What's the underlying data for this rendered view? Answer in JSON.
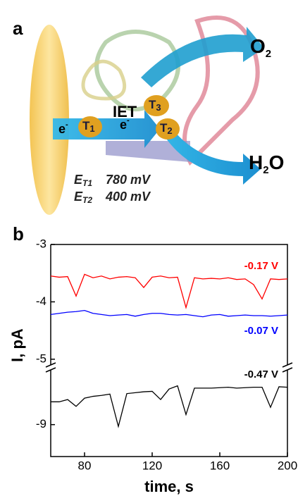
{
  "panel_a": {
    "label": "a",
    "iet": "IET",
    "electron_1": {
      "base": "e",
      "sup": "-"
    },
    "electron_2": {
      "base": "e",
      "sup": "-"
    },
    "t1": {
      "base": "T",
      "sub": "1"
    },
    "t2": {
      "base": "T",
      "sub": "2"
    },
    "t3": {
      "base": "T",
      "sub": "3"
    },
    "o2": {
      "base": "O",
      "sub": "2"
    },
    "h2o": {
      "base": "H",
      "sub": "2",
      "rest": "O"
    },
    "e_t1": {
      "base": "E",
      "sub": "T1",
      "value": "780 mV"
    },
    "e_t2": {
      "base": "E",
      "sub": "T2",
      "value": "400 mV"
    }
  },
  "chart_data": {
    "type": "line",
    "panel_label": "b",
    "x_label": "time, s",
    "y_label": "I, pA",
    "x": [
      60,
      65,
      70,
      75,
      80,
      85,
      90,
      95,
      100,
      105,
      110,
      115,
      120,
      125,
      130,
      135,
      140,
      145,
      150,
      155,
      160,
      165,
      170,
      175,
      180,
      185,
      190,
      195,
      200
    ],
    "xlim": [
      60,
      200
    ],
    "xticks": [
      80,
      120,
      160,
      200
    ],
    "ylim": [
      -5.1,
      -3
    ],
    "yticks": [
      -3,
      -4,
      -5
    ],
    "y2lim": [
      -9.7,
      -7.8
    ],
    "y2ticks": [
      -9
    ],
    "series": [
      {
        "name": "-0.17 V",
        "color": "#ff0000",
        "values": [
          -3.55,
          -3.57,
          -3.56,
          -3.9,
          -3.52,
          -3.58,
          -3.55,
          -3.6,
          -3.57,
          -3.56,
          -3.58,
          -3.75,
          -3.57,
          -3.55,
          -3.58,
          -3.57,
          -4.1,
          -3.58,
          -3.6,
          -3.59,
          -3.6,
          -3.58,
          -3.61,
          -3.6,
          -3.7,
          -3.95,
          -3.6,
          -3.61,
          -3.6
        ]
      },
      {
        "name": "-0.07 V",
        "color": "#0000ff",
        "values": [
          -4.22,
          -4.2,
          -4.18,
          -4.17,
          -4.15,
          -4.2,
          -4.22,
          -4.24,
          -4.23,
          -4.22,
          -4.25,
          -4.22,
          -4.2,
          -4.2,
          -4.22,
          -4.23,
          -4.22,
          -4.24,
          -4.26,
          -4.23,
          -4.22,
          -4.25,
          -4.24,
          -4.23,
          -4.24,
          -4.24,
          -4.25,
          -4.24,
          -4.23
        ]
      },
      {
        "name": "-0.47 V",
        "color": "#000000",
        "axis": "y2",
        "values": [
          -8.5,
          -8.5,
          -8.45,
          -8.6,
          -8.42,
          -8.38,
          -8.36,
          -8.33,
          -9.04,
          -8.32,
          -8.3,
          -8.28,
          -8.27,
          -8.45,
          -8.22,
          -8.15,
          -8.78,
          -8.2,
          -8.2,
          -8.2,
          -8.19,
          -8.18,
          -8.2,
          -8.19,
          -8.18,
          -8.18,
          -8.62,
          -8.17,
          -8.18
        ]
      }
    ]
  }
}
